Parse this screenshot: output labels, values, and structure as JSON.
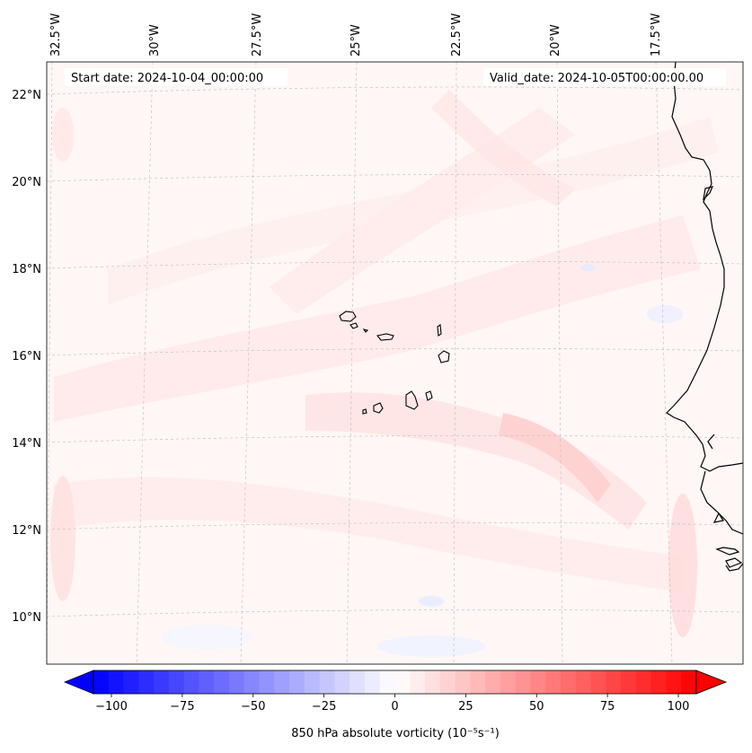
{
  "header": {
    "start_date": "Start date: 2024-10-04_00:00:00",
    "valid_date": "Valid_date: 2024-10-05T00:00:00.00"
  },
  "map": {
    "lon_labels": [
      "32.5°W",
      "30°W",
      "27.5°W",
      "25°W",
      "22.5°W",
      "20°W",
      "17.5°W"
    ],
    "lat_labels": [
      "22°N",
      "20°N",
      "18°N",
      "16°N",
      "14°N",
      "12°N",
      "10°N"
    ],
    "field": "850 hPa absolute vorticity"
  },
  "colorbar": {
    "ticks": [
      "−100",
      "−75",
      "−50",
      "−25",
      "0",
      "25",
      "50",
      "75",
      "100"
    ],
    "label": "850 hPa absolute vorticity (10⁻⁵s⁻¹)",
    "range": [
      -100,
      100
    ],
    "colors": {
      "min": "#0000ff",
      "mid": "#ffffff",
      "max": "#ff0000"
    }
  }
}
